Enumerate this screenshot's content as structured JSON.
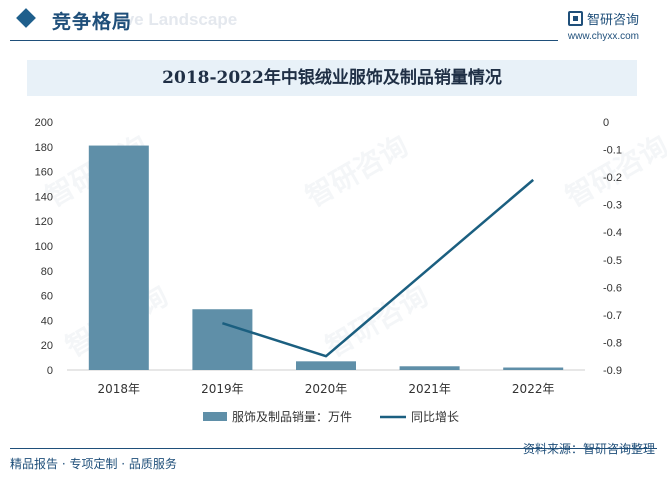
{
  "header": {
    "section_title": "竞争格局",
    "section_subtitle": "ive Landscape",
    "brand_name": "智研咨询",
    "brand_url": "www.chyxx.com"
  },
  "chart_title": "2018-2022年中银绒业服饰及制品销量情况",
  "chart_data": {
    "type": "bar",
    "title": "2018-2022年中银绒业服饰及制品销量情况",
    "categories": [
      "2018年",
      "2019年",
      "2020年",
      "2021年",
      "2022年"
    ],
    "series": [
      {
        "name": "服饰及制品销量：万件",
        "kind": "bar",
        "axis": "left",
        "values": [
          181,
          49,
          7,
          3,
          2
        ]
      },
      {
        "name": "同比增长",
        "kind": "line",
        "axis": "right",
        "values": [
          null,
          -0.73,
          -0.85,
          -0.53,
          -0.21
        ]
      }
    ],
    "y_left": {
      "min": 0,
      "max": 200,
      "step": 20,
      "ticks": [
        "0",
        "20",
        "40",
        "60",
        "80",
        "100",
        "120",
        "140",
        "160",
        "180",
        "200"
      ]
    },
    "y_right": {
      "min": -0.9,
      "max": 0,
      "step": 0.1,
      "ticks": [
        "-0.9",
        "-0.8",
        "-0.7",
        "-0.6",
        "-0.5",
        "-0.4",
        "-0.3",
        "-0.2",
        "-0.1",
        "0"
      ]
    },
    "legend_position": "bottom",
    "colors": {
      "bar": "#5f8fa8",
      "line": "#1b5f80"
    }
  },
  "footer": {
    "left": "精品报告 · 专项定制 · 品质服务",
    "right": "资料来源：智研咨询整理"
  },
  "watermark": "智研咨询"
}
